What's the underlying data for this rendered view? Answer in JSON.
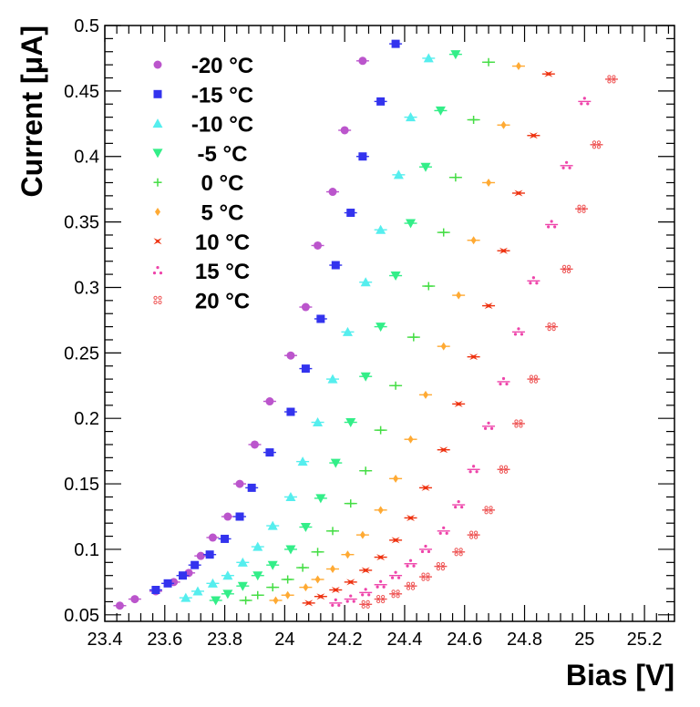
{
  "chart_data": {
    "type": "scatter",
    "title": "",
    "xlabel": "Bias [V]",
    "ylabel": "Current [μA]",
    "xlim": [
      23.4,
      25.3
    ],
    "ylim": [
      0.045,
      0.5
    ],
    "xticks": [
      23.4,
      23.6,
      23.8,
      24,
      24.2,
      24.4,
      24.6,
      24.8,
      25,
      25.2
    ],
    "xtick_labels": [
      "23.4",
      "23.6",
      "23.8",
      "24",
      "24.2",
      "24.4",
      "24.6",
      "24.8",
      "25",
      "25.2"
    ],
    "yticks": [
      0.05,
      0.1,
      0.15,
      0.2,
      0.25,
      0.3,
      0.35,
      0.4,
      0.45,
      0.5
    ],
    "ytick_labels": [
      "0.05",
      "0.1",
      "0.15",
      "0.2",
      "0.25",
      "0.3",
      "0.35",
      "0.4",
      "0.45",
      "0.5"
    ],
    "legend_position": "top-left",
    "series": [
      {
        "name": "-20 °C",
        "marker": "circle",
        "color": "#bb55cc",
        "x": [
          23.45,
          23.5,
          23.57,
          23.63,
          23.68,
          23.72,
          23.76,
          23.81,
          23.85,
          23.9,
          23.95,
          24.02,
          24.07,
          24.11,
          24.16,
          24.2,
          24.26
        ],
        "y": [
          0.057,
          0.062,
          0.068,
          0.075,
          0.082,
          0.095,
          0.109,
          0.125,
          0.15,
          0.18,
          0.213,
          0.248,
          0.285,
          0.332,
          0.373,
          0.42,
          0.473
        ]
      },
      {
        "name": "-15 °C",
        "marker": "square",
        "color": "#3333ee",
        "x": [
          23.57,
          23.61,
          23.66,
          23.7,
          23.75,
          23.8,
          23.85,
          23.89,
          23.95,
          24.02,
          24.07,
          24.12,
          24.17,
          24.22,
          24.26,
          24.32,
          24.37
        ],
        "y": [
          0.069,
          0.074,
          0.08,
          0.088,
          0.096,
          0.108,
          0.125,
          0.147,
          0.174,
          0.205,
          0.238,
          0.276,
          0.317,
          0.357,
          0.4,
          0.442,
          0.486
        ]
      },
      {
        "name": "-10 °C",
        "marker": "triangle-up",
        "color": "#55eeee",
        "x": [
          23.67,
          23.71,
          23.76,
          23.81,
          23.86,
          23.91,
          23.96,
          24.02,
          24.06,
          24.11,
          24.16,
          24.21,
          24.27,
          24.32,
          24.38,
          24.42,
          24.48
        ],
        "y": [
          0.063,
          0.068,
          0.074,
          0.08,
          0.09,
          0.102,
          0.118,
          0.14,
          0.167,
          0.197,
          0.23,
          0.266,
          0.304,
          0.344,
          0.386,
          0.43,
          0.475
        ]
      },
      {
        "name": "-5 °C",
        "marker": "triangle-down",
        "color": "#33ee88",
        "x": [
          23.77,
          23.81,
          23.86,
          23.91,
          23.96,
          24.02,
          24.07,
          24.12,
          24.17,
          24.22,
          24.27,
          24.32,
          24.37,
          24.42,
          24.47,
          24.52,
          24.57
        ],
        "y": [
          0.061,
          0.066,
          0.072,
          0.08,
          0.088,
          0.1,
          0.117,
          0.139,
          0.166,
          0.197,
          0.232,
          0.27,
          0.309,
          0.349,
          0.392,
          0.435,
          0.478
        ]
      },
      {
        "name": "0 °C",
        "marker": "cross",
        "color": "#44dd44",
        "x": [
          23.87,
          23.91,
          23.96,
          24.01,
          24.06,
          24.11,
          24.16,
          24.22,
          24.27,
          24.32,
          24.37,
          24.43,
          24.48,
          24.53,
          24.57,
          24.63,
          24.68
        ],
        "y": [
          0.061,
          0.065,
          0.071,
          0.077,
          0.086,
          0.098,
          0.114,
          0.135,
          0.16,
          0.191,
          0.225,
          0.262,
          0.301,
          0.342,
          0.384,
          0.428,
          0.472
        ]
      },
      {
        "name": "5 °C",
        "marker": "diamond",
        "color": "#ffaa33",
        "x": [
          23.97,
          24.01,
          24.07,
          24.11,
          24.16,
          24.21,
          24.26,
          24.32,
          24.37,
          24.42,
          24.47,
          24.53,
          24.58,
          24.63,
          24.68,
          24.73,
          24.78
        ],
        "y": [
          0.061,
          0.065,
          0.071,
          0.077,
          0.085,
          0.096,
          0.111,
          0.13,
          0.154,
          0.184,
          0.218,
          0.255,
          0.294,
          0.336,
          0.38,
          0.424,
          0.469
        ]
      },
      {
        "name": "10 °C",
        "marker": "star",
        "color": "#ee3311",
        "x": [
          24.08,
          24.12,
          24.17,
          24.22,
          24.27,
          24.32,
          24.37,
          24.42,
          24.47,
          24.53,
          24.58,
          24.63,
          24.68,
          24.73,
          24.78,
          24.83,
          24.88
        ],
        "y": [
          0.059,
          0.064,
          0.069,
          0.075,
          0.084,
          0.094,
          0.107,
          0.124,
          0.147,
          0.176,
          0.211,
          0.247,
          0.286,
          0.328,
          0.372,
          0.416,
          0.463
        ]
      },
      {
        "name": "15 °C",
        "marker": "tri-star",
        "color": "#ee44aa",
        "x": [
          24.17,
          24.22,
          24.27,
          24.32,
          24.37,
          24.42,
          24.47,
          24.53,
          24.58,
          24.63,
          24.68,
          24.73,
          24.78,
          24.83,
          24.89,
          24.94,
          25.0
        ],
        "y": [
          0.059,
          0.062,
          0.067,
          0.073,
          0.08,
          0.089,
          0.1,
          0.114,
          0.134,
          0.161,
          0.194,
          0.228,
          0.266,
          0.305,
          0.348,
          0.393,
          0.442
        ]
      },
      {
        "name": "20 °C",
        "marker": "open-cross",
        "color": "#ee5555",
        "x": [
          24.27,
          24.32,
          24.37,
          24.42,
          24.47,
          24.52,
          24.58,
          24.63,
          24.68,
          24.73,
          24.78,
          24.83,
          24.89,
          24.94,
          24.99,
          25.04,
          25.09
        ],
        "y": [
          0.058,
          0.062,
          0.066,
          0.072,
          0.079,
          0.087,
          0.098,
          0.111,
          0.13,
          0.161,
          0.196,
          0.23,
          0.27,
          0.314,
          0.36,
          0.409,
          0.459
        ]
      }
    ]
  }
}
